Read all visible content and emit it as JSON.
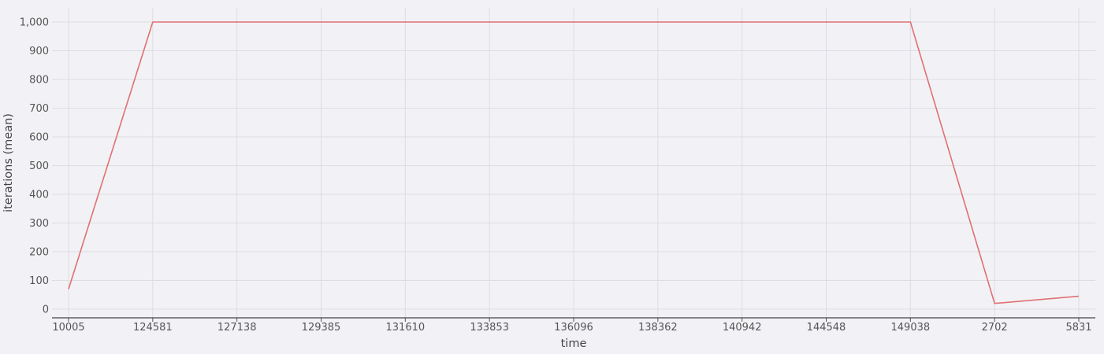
{
  "chart_data": {
    "type": "line",
    "title": "",
    "xlabel": "time",
    "ylabel": "iterations (mean)",
    "x": [
      "10005",
      "124581",
      "127138",
      "129385",
      "131610",
      "133853",
      "136096",
      "138362",
      "140942",
      "144548",
      "149038",
      "2702",
      "5831"
    ],
    "series": [
      {
        "values": [
          70,
          1000,
          1000,
          1000,
          1000,
          1000,
          1000,
          1000,
          1000,
          1000,
          1000,
          20,
          45
        ],
        "color": "#e07070"
      }
    ],
    "ylim": [
      0,
      1000
    ],
    "yticks": [
      0,
      100,
      200,
      300,
      400,
      500,
      600,
      700,
      800,
      900,
      1000
    ],
    "ytick_labels": [
      "0",
      "100",
      "200",
      "300",
      "400",
      "500",
      "600",
      "700",
      "800",
      "900",
      "1,000"
    ],
    "grid": true,
    "legend": "none"
  }
}
